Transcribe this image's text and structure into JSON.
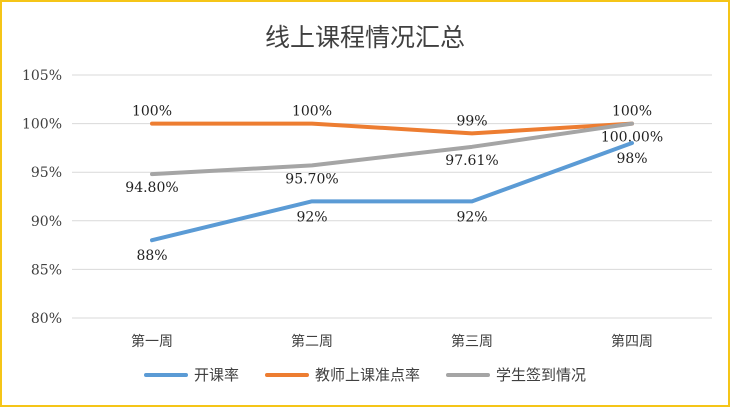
{
  "chart_data": {
    "type": "line",
    "title": "线上课程情况汇总",
    "categories": [
      "第一周",
      "第二周",
      "第三周",
      "第四周"
    ],
    "ylim": [
      80,
      105
    ],
    "yticks": [
      80,
      85,
      90,
      95,
      100,
      105
    ],
    "ytick_labels": [
      "80%",
      "85%",
      "90%",
      "95%",
      "100%",
      "105%"
    ],
    "grid": true,
    "legend_position": "bottom",
    "series": [
      {
        "name": "开课率",
        "color": "#5B9BD5",
        "values": [
          88,
          92,
          92,
          98
        ],
        "labels": [
          "88%",
          "92%",
          "92%",
          "98%"
        ]
      },
      {
        "name": "教师上课准点率",
        "color": "#ED7D31",
        "values": [
          100,
          100,
          99,
          100
        ],
        "labels": [
          "100%",
          "100%",
          "99%",
          "100%"
        ]
      },
      {
        "name": "学生签到情况",
        "color": "#A5A5A5",
        "values": [
          94.8,
          95.7,
          97.61,
          100
        ],
        "labels": [
          "94.80%",
          "95.70%",
          "97.61%",
          "100.00%"
        ]
      }
    ]
  }
}
